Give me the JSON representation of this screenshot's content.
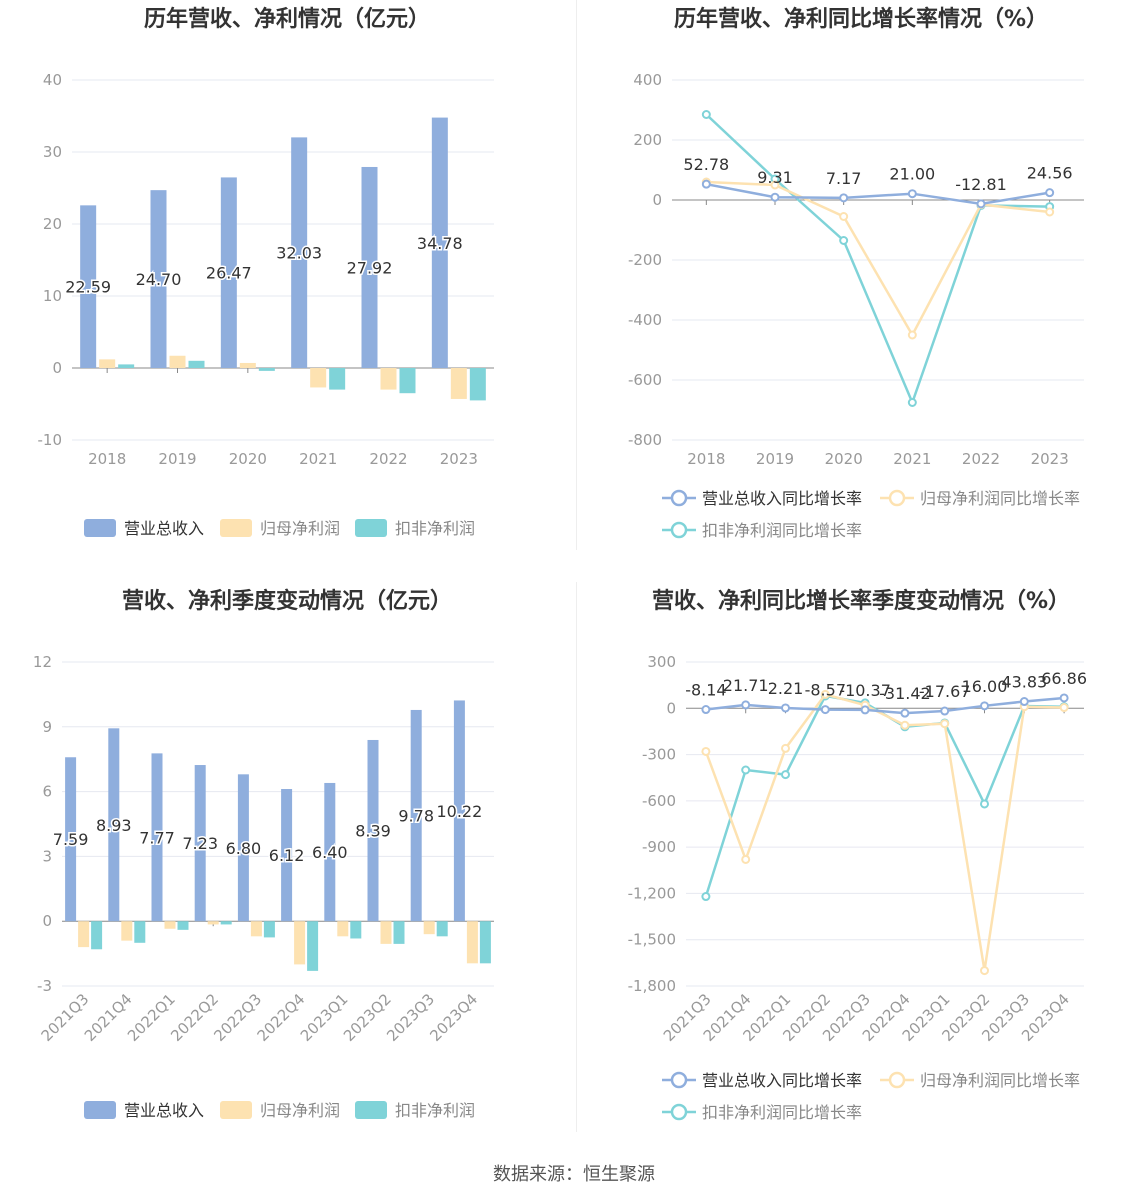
{
  "footer": "数据来源：恒生聚源",
  "colors": {
    "revenue": "#8faedd",
    "net_profit": "#fde2b1",
    "deducted_profit": "#7fd3d8",
    "axis": "#999999",
    "grid": "#e6e8f0"
  },
  "chart_data": [
    {
      "type": "bar",
      "title": "历年营收、净利情况（亿元）",
      "categories": [
        "2018",
        "2019",
        "2020",
        "2021",
        "2022",
        "2023"
      ],
      "ylim": [
        -10,
        40
      ],
      "yticks": [
        -10,
        0,
        10,
        20,
        30,
        40
      ],
      "grid": true,
      "legend_position": "bottom",
      "series": [
        {
          "name": "营业总收入",
          "values": [
            22.59,
            24.7,
            26.47,
            32.03,
            27.92,
            34.78
          ],
          "labels": [
            "22.59",
            "24.70",
            "26.47",
            "32.03",
            "27.92",
            "34.78"
          ]
        },
        {
          "name": "归母净利润",
          "values": [
            1.2,
            1.7,
            0.7,
            -2.7,
            -3.0,
            -4.3
          ]
        },
        {
          "name": "扣非净利润",
          "values": [
            0.5,
            1.0,
            -0.4,
            -3.0,
            -3.5,
            -4.5
          ]
        }
      ]
    },
    {
      "type": "line",
      "title": "历年营收、净利同比增长率情况（%）",
      "categories": [
        "2018",
        "2019",
        "2020",
        "2021",
        "2022",
        "2023"
      ],
      "ylim": [
        -800,
        400
      ],
      "yticks": [
        -800,
        -600,
        -400,
        -200,
        0,
        200,
        400
      ],
      "grid": true,
      "legend_position": "bottom",
      "series": [
        {
          "name": "营业总收入同比增长率",
          "values": [
            52.78,
            9.31,
            7.17,
            21.0,
            -12.81,
            24.56
          ],
          "labels": [
            "52.78",
            "9.31",
            "7.17",
            "21.00",
            "-12.81",
            "24.56"
          ]
        },
        {
          "name": "归母净利润同比增长率",
          "values": [
            60,
            50,
            -55,
            -450,
            -15,
            -40
          ]
        },
        {
          "name": "扣非净利润同比增长率",
          "values": [
            285,
            70,
            -135,
            -675,
            -18,
            -22
          ]
        }
      ]
    },
    {
      "type": "bar",
      "title": "营收、净利季度变动情况（亿元）",
      "categories": [
        "2021Q3",
        "2021Q4",
        "2022Q1",
        "2022Q2",
        "2022Q3",
        "2022Q4",
        "2023Q1",
        "2023Q2",
        "2023Q3",
        "2023Q4"
      ],
      "ylim": [
        -3,
        12
      ],
      "yticks": [
        -3,
        0,
        3,
        6,
        9,
        12
      ],
      "grid": true,
      "legend_position": "bottom",
      "series": [
        {
          "name": "营业总收入",
          "values": [
            7.59,
            8.93,
            7.77,
            7.23,
            6.8,
            6.12,
            6.4,
            8.39,
            9.78,
            10.22
          ],
          "labels": [
            "7.59",
            "8.93",
            "7.77",
            "7.23",
            "6.80",
            "6.12",
            "6.40",
            "8.39",
            "9.78",
            "10.22"
          ]
        },
        {
          "name": "归母净利润",
          "values": [
            -1.2,
            -0.9,
            -0.35,
            -0.15,
            -0.7,
            -2.0,
            -0.7,
            -1.05,
            -0.6,
            -1.95
          ]
        },
        {
          "name": "扣非净利润",
          "values": [
            -1.3,
            -1.0,
            -0.4,
            -0.15,
            -0.75,
            -2.3,
            -0.8,
            -1.05,
            -0.7,
            -1.95
          ]
        }
      ]
    },
    {
      "type": "line",
      "title": "营收、净利同比增长率季度变动情况（%）",
      "categories": [
        "2021Q3",
        "2021Q4",
        "2022Q1",
        "2022Q2",
        "2022Q3",
        "2022Q4",
        "2023Q1",
        "2023Q2",
        "2023Q3",
        "2023Q4"
      ],
      "ylim": [
        -1800,
        300
      ],
      "yticks": [
        -1800,
        -1500,
        -1200,
        -900,
        -600,
        -300,
        0,
        300
      ],
      "grid": true,
      "legend_position": "bottom",
      "series": [
        {
          "name": "营业总收入同比增长率",
          "values": [
            -8.14,
            21.71,
            2.21,
            -8.57,
            -10.37,
            -31.42,
            -17.67,
            16.0,
            43.83,
            66.86
          ],
          "labels": [
            "-8.14",
            "21.71",
            "2.21",
            "-8.57",
            "-10.37",
            "-31.42",
            "-17.67",
            "16.00",
            "43.83",
            "66.86"
          ]
        },
        {
          "name": "归母净利润同比增长率",
          "values": [
            -280,
            -980,
            -260,
            90,
            20,
            -110,
            -100,
            -1700,
            10,
            5
          ]
        },
        {
          "name": "扣非净利润同比增长率",
          "values": [
            -1220,
            -400,
            -430,
            80,
            35,
            -120,
            -95,
            -620,
            15,
            10
          ]
        }
      ]
    }
  ]
}
